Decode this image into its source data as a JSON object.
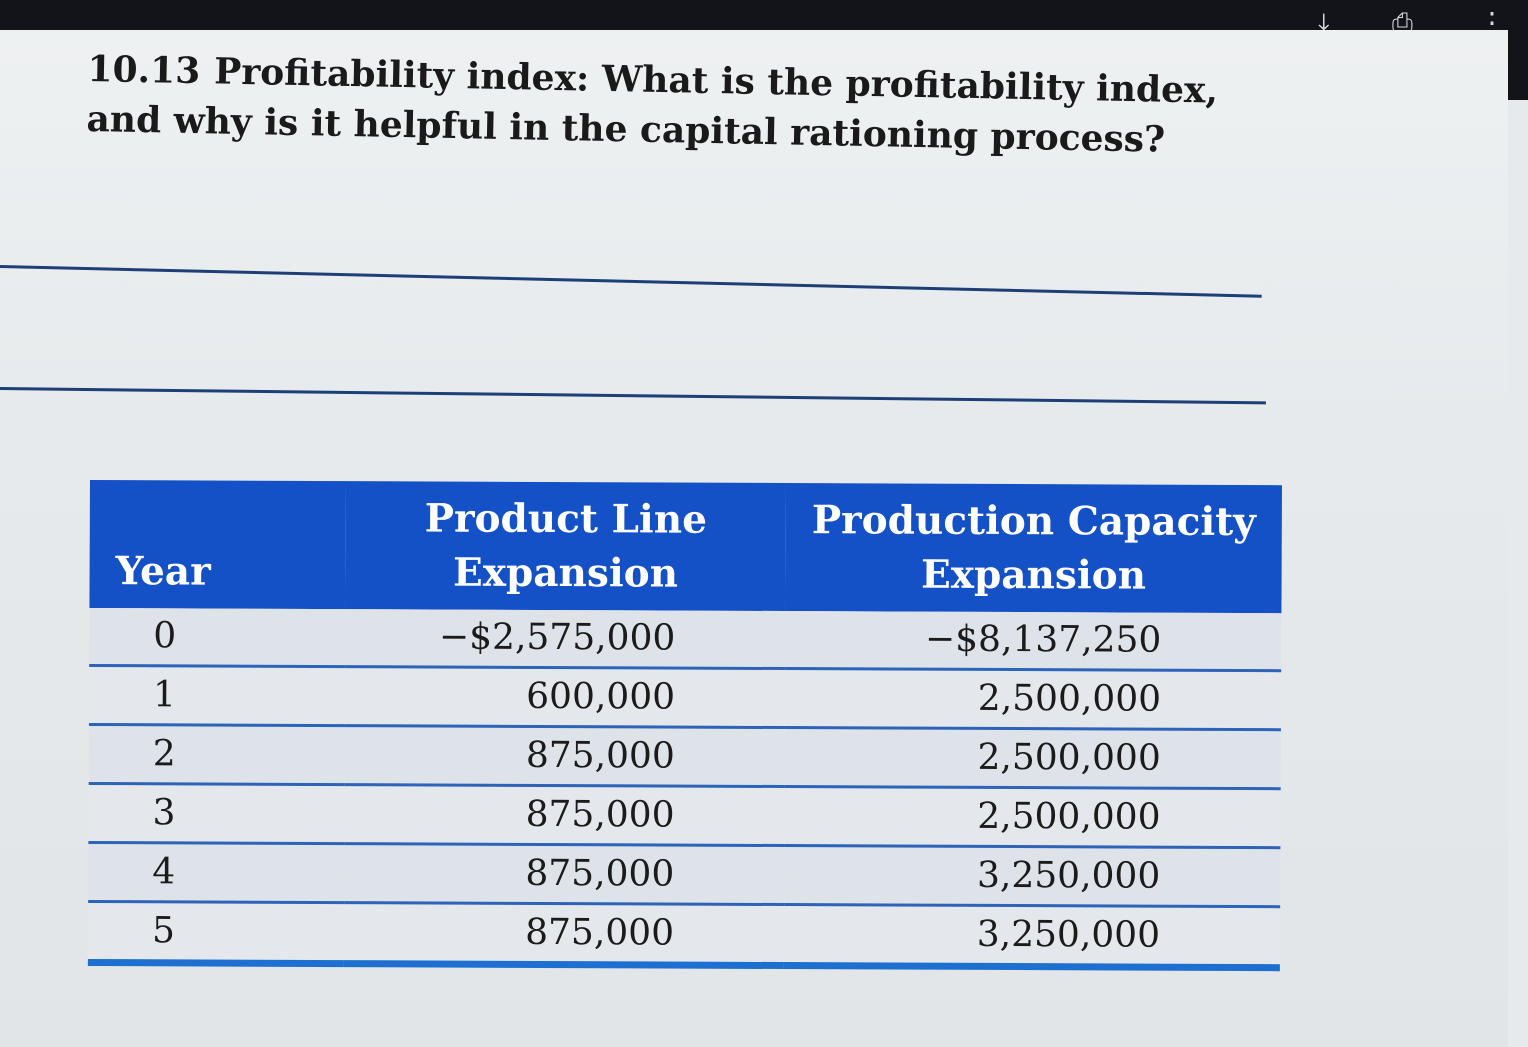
{
  "toolbar": {
    "download_icon": "download-icon",
    "print_icon": "print-icon",
    "more_icon": "more-options-icon"
  },
  "question": {
    "number": "10.13",
    "topic": "Profitability index:",
    "text": "What is the profitability index, and why is it helpful in the capital rationing process?"
  },
  "table": {
    "headers": {
      "year": "Year",
      "product_line": "Product Line Expansion",
      "production_capacity": "Production Capacity Expansion"
    },
    "rows": [
      {
        "year": "0",
        "product_line": "−$2,575,000",
        "production_capacity": "−$8,137,250"
      },
      {
        "year": "1",
        "product_line": "600,000",
        "production_capacity": "2,500,000"
      },
      {
        "year": "2",
        "product_line": "875,000",
        "production_capacity": "2,500,000"
      },
      {
        "year": "3",
        "product_line": "875,000",
        "production_capacity": "2,500,000"
      },
      {
        "year": "4",
        "product_line": "875,000",
        "production_capacity": "3,250,000"
      },
      {
        "year": "5",
        "product_line": "875,000",
        "production_capacity": "3,250,000"
      }
    ]
  },
  "colors": {
    "header_blue": "#1450c6",
    "rule_blue": "#2d63b8",
    "answer_line": "#1c3f78",
    "viewer_bar": "#121419"
  }
}
